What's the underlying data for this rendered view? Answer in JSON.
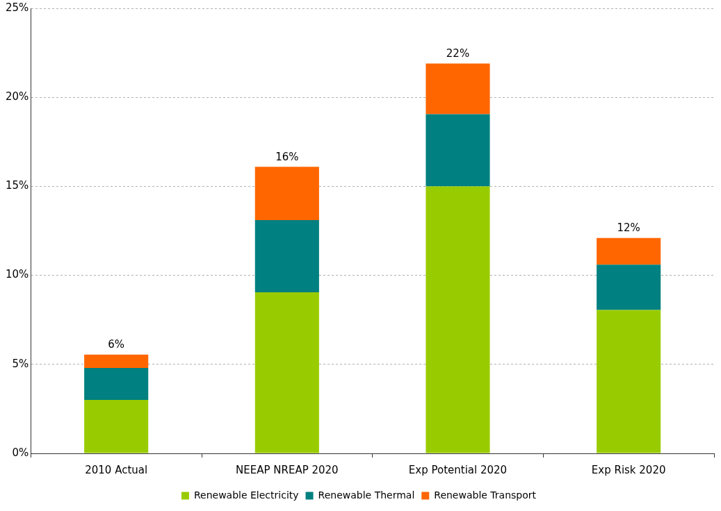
{
  "chart_data": {
    "type": "bar",
    "stacked": true,
    "categories": [
      "2010 Actual",
      "NEEAP NREAP 2020",
      "Exp Potential 2020",
      "Exp Risk 2020"
    ],
    "series": [
      {
        "name": "Renewable Electricity",
        "color": "#99cc00",
        "values": [
          3.0,
          9.05,
          15.0,
          8.05
        ]
      },
      {
        "name": "Renewable Thermal",
        "color": "#008080",
        "values": [
          1.8,
          4.05,
          4.05,
          2.55
        ]
      },
      {
        "name": "Renewable Transport",
        "color": "#ff6600",
        "values": [
          0.75,
          3.0,
          2.85,
          1.5
        ]
      }
    ],
    "totals": [
      "6%",
      "16%",
      "22%",
      "12%"
    ],
    "ylim": [
      0,
      25
    ],
    "yticks": [
      {
        "value": 0,
        "label": "0%"
      },
      {
        "value": 5,
        "label": "5%"
      },
      {
        "value": 10,
        "label": "10%"
      },
      {
        "value": 15,
        "label": "15%"
      },
      {
        "value": 20,
        "label": "20%"
      },
      {
        "value": 25,
        "label": "25%"
      }
    ],
    "grid": "y",
    "line_style": "dashed",
    "legend": "bottom"
  }
}
